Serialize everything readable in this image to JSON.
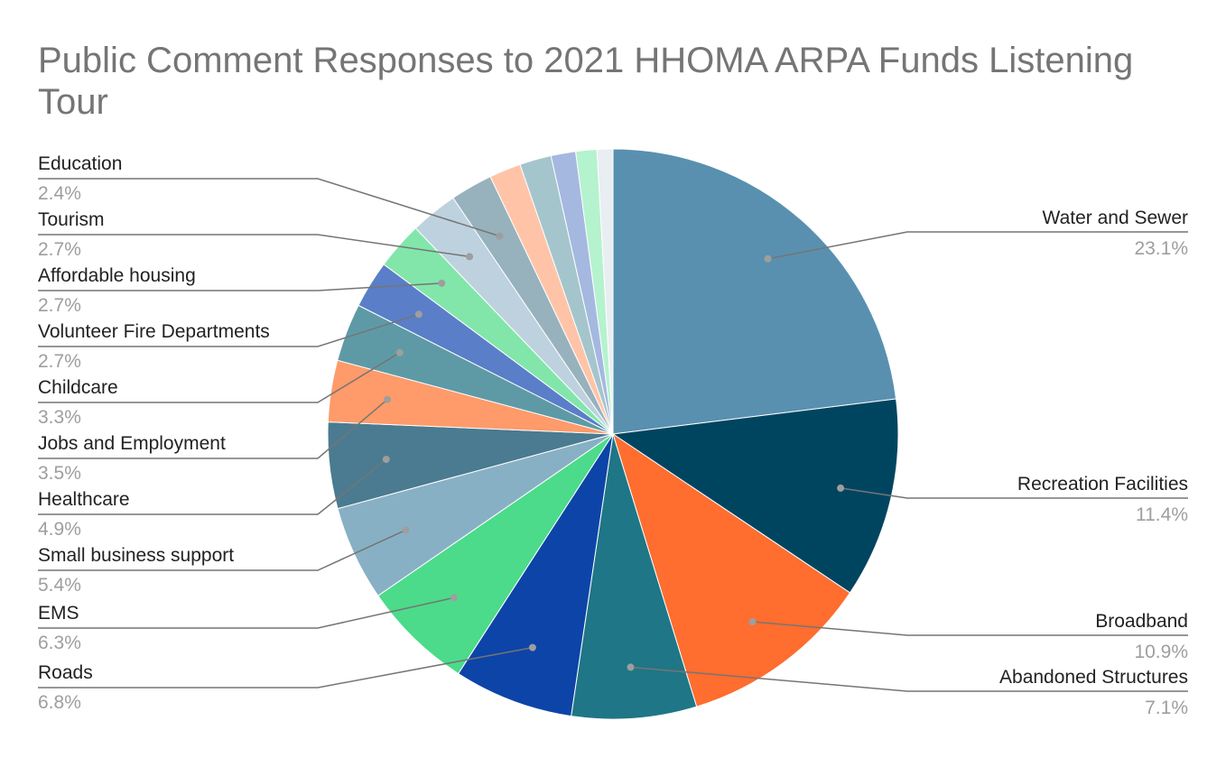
{
  "chart_data": {
    "type": "pie",
    "title": "Public Comment Responses to 2021 HHOMA ARPA Funds Listening Tour",
    "legend": "none",
    "slices": [
      {
        "label": "Water and Sewer",
        "value": 23.1,
        "value_label": "23.1%",
        "color": "#5990b0"
      },
      {
        "label": "Recreation Facilities",
        "value": 11.4,
        "value_label": "11.4%",
        "color": "#004560"
      },
      {
        "label": "Broadband",
        "value": 10.9,
        "value_label": "10.9%",
        "color": "#ff6d2f"
      },
      {
        "label": "Abandoned Structures",
        "value": 7.1,
        "value_label": "7.1%",
        "color": "#1f7686"
      },
      {
        "label": "Roads",
        "value": 6.8,
        "value_label": "6.8%",
        "color": "#0d44a8"
      },
      {
        "label": "EMS",
        "value": 6.3,
        "value_label": "6.3%",
        "color": "#4cdb8a"
      },
      {
        "label": "Small business support",
        "value": 5.4,
        "value_label": "5.4%",
        "color": "#88b0c4"
      },
      {
        "label": "Healthcare",
        "value": 4.9,
        "value_label": "4.9%",
        "color": "#4a7b90"
      },
      {
        "label": "Jobs and Employment",
        "value": 3.5,
        "value_label": "3.5%",
        "color": "#ff9a6a"
      },
      {
        "label": "Childcare",
        "value": 3.3,
        "value_label": "3.3%",
        "color": "#5e9aa6"
      },
      {
        "label": "Volunteer Fire Departments",
        "value": 2.7,
        "value_label": "2.7%",
        "color": "#5a7ec8"
      },
      {
        "label": "Affordable housing",
        "value": 2.7,
        "value_label": "2.7%",
        "color": "#82e6ab"
      },
      {
        "label": "Tourism",
        "value": 2.7,
        "value_label": "2.7%",
        "color": "#bdd2de"
      },
      {
        "label": "Education",
        "value": 2.4,
        "value_label": "2.4%",
        "color": "#97b2bd"
      },
      {
        "label": "",
        "value": 1.8,
        "value_label": "",
        "color": "#ffc4a8"
      },
      {
        "label": "",
        "value": 1.8,
        "value_label": "",
        "color": "#a5c5cc"
      },
      {
        "label": "",
        "value": 1.4,
        "value_label": "",
        "color": "#a5b8e0"
      },
      {
        "label": "",
        "value": 1.2,
        "value_label": "",
        "color": "#b5f2ce"
      },
      {
        "label": "",
        "value": 0.9,
        "value_label": "",
        "color": "#e8eef2"
      }
    ]
  }
}
